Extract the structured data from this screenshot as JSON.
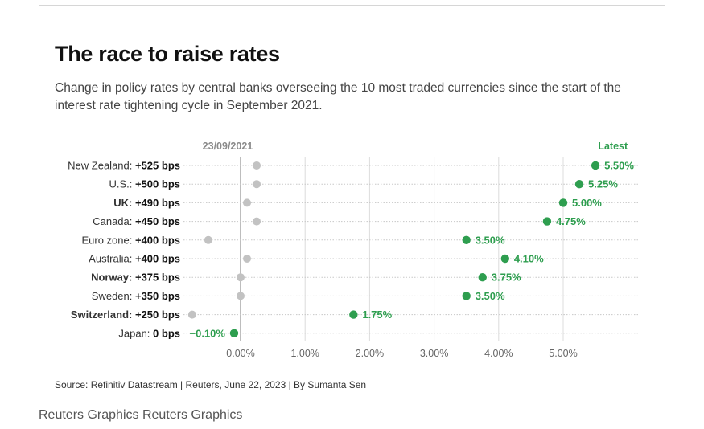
{
  "header": {
    "title": "The race to raise rates",
    "subtitle": "Change in policy rates by central banks overseeing the 10 most traded currencies since the start of the interest rate tightening cycle in September 2021."
  },
  "chart_data": {
    "type": "dumbbell",
    "start_label": "23/09/2021",
    "end_label": "Latest",
    "x_ticks": [
      "0.00%",
      "1.00%",
      "2.00%",
      "3.00%",
      "4.00%",
      "5.00%"
    ],
    "x_tick_values": [
      0,
      1,
      2,
      3,
      4,
      5
    ],
    "xlim": [
      -0.55,
      6.2
    ],
    "rows": [
      {
        "name": "New Zealand:",
        "change": "+525 bps",
        "bold_name": false,
        "start": 0.25,
        "end": 5.5,
        "end_label": "5.50%"
      },
      {
        "name": "U.S.:",
        "change": "+500 bps",
        "bold_name": false,
        "start": 0.25,
        "end": 5.25,
        "end_label": "5.25%"
      },
      {
        "name": "UK:",
        "change": "+490 bps",
        "bold_name": true,
        "start": 0.1,
        "end": 5.0,
        "end_label": "5.00%"
      },
      {
        "name": "Canada:",
        "change": "+450 bps",
        "bold_name": false,
        "start": 0.25,
        "end": 4.75,
        "end_label": "4.75%"
      },
      {
        "name": "Euro zone:",
        "change": "+400 bps",
        "bold_name": false,
        "start": -0.5,
        "end": 3.5,
        "end_label": "3.50%"
      },
      {
        "name": "Australia:",
        "change": "+400 bps",
        "bold_name": false,
        "start": 0.1,
        "end": 4.1,
        "end_label": "4.10%"
      },
      {
        "name": "Norway:",
        "change": "+375 bps",
        "bold_name": true,
        "start": 0.0,
        "end": 3.75,
        "end_label": "3.75%"
      },
      {
        "name": "Sweden:",
        "change": "+350 bps",
        "bold_name": false,
        "start": 0.0,
        "end": 3.5,
        "end_label": "3.50%"
      },
      {
        "name": "Switzerland:",
        "change": "+250 bps",
        "bold_name": true,
        "start": -0.75,
        "end": 1.75,
        "end_label": "1.75%"
      },
      {
        "name": "Japan:",
        "change": "0 bps",
        "bold_name": false,
        "start": -0.1,
        "end": -0.1,
        "end_label": "−0.10%"
      }
    ],
    "colors": {
      "start": "#c2c2c2",
      "end": "#2e9e4f",
      "end_text": "#2e9e4f",
      "label_gray": "#8a8a8a"
    }
  },
  "footer": {
    "source": "Source: Refinitiv Datastream | Reuters, June 22, 2023 | By Sumanta Sen",
    "credit": "Reuters Graphics Reuters Graphics"
  }
}
